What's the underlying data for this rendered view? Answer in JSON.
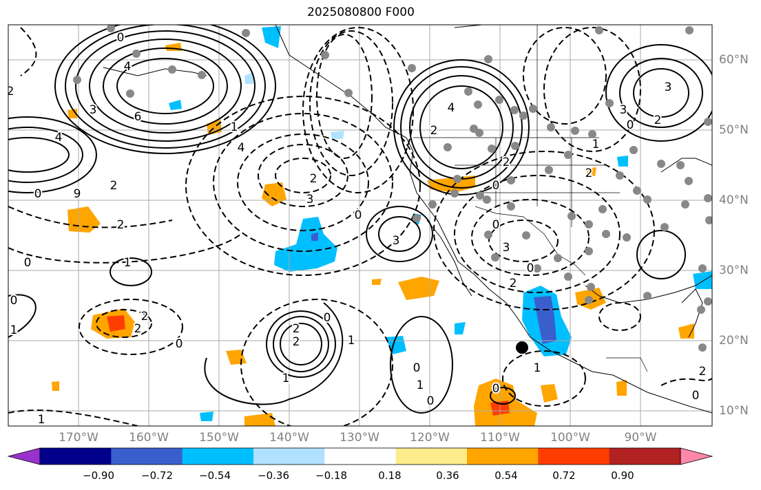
{
  "title": "2025080800 F000",
  "lat_labels": [
    "60°N",
    "50°N",
    "40°N",
    "30°N",
    "20°N",
    "10°N"
  ],
  "lon_labels": [
    "170°W",
    "160°W",
    "150°W",
    "140°W",
    "130°W",
    "120°W",
    "110°W",
    "100°W",
    "90°W"
  ],
  "colorbar": {
    "ticks": [
      "−0.90",
      "−0.72",
      "−0.54",
      "−0.36",
      "−0.18",
      "0.18",
      "0.36",
      "0.54",
      "0.72",
      "0.90"
    ],
    "colors": [
      "#9932cc",
      "#00008b",
      "#3a5fcd",
      "#00bfff",
      "#b0e2ff",
      "#ffffff",
      "#fdec8c",
      "#ffa500",
      "#ff3d00",
      "#b22222",
      "#ff88aa"
    ]
  },
  "contour_labels": [
    "0",
    "4",
    "6",
    "3",
    "4",
    "2",
    "9",
    "0",
    "2",
    "1",
    "4",
    "3",
    "2",
    "0",
    "3",
    "4",
    "2",
    "2",
    "0",
    "0",
    "3",
    "0",
    "2",
    "0",
    "2",
    "1",
    "2",
    "2",
    "0",
    "1",
    "0",
    "1",
    "2",
    "2",
    "1",
    "0",
    "1",
    "0",
    "1",
    "0",
    "0",
    "1",
    "3",
    "0",
    "2",
    "2",
    "1",
    "0",
    "2",
    "3"
  ],
  "colors": {
    "grid": "#aaaaaa",
    "axis_text": "#808080",
    "contour": "#000000"
  }
}
